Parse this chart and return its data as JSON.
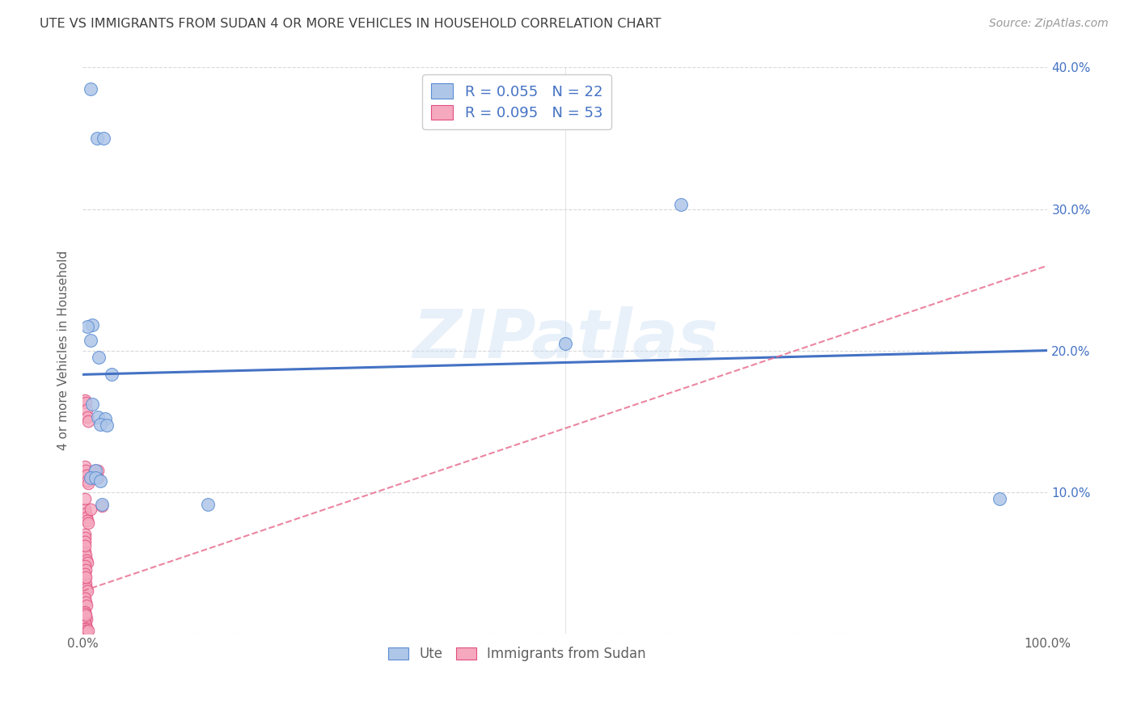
{
  "title": "UTE VS IMMIGRANTS FROM SUDAN 4 OR MORE VEHICLES IN HOUSEHOLD CORRELATION CHART",
  "source": "Source: ZipAtlas.com",
  "ylabel": "4 or more Vehicles in Household",
  "watermark": "ZIPatlas",
  "blue_R": 0.055,
  "blue_N": 22,
  "pink_R": 0.095,
  "pink_N": 53,
  "xlim": [
    0,
    1.0
  ],
  "ylim": [
    0,
    0.4
  ],
  "blue_scatter_x": [
    0.008,
    0.015,
    0.022,
    0.01,
    0.008,
    0.017,
    0.03,
    0.01,
    0.016,
    0.023,
    0.018,
    0.025,
    0.013,
    0.008,
    0.013,
    0.018,
    0.02,
    0.5,
    0.62,
    0.95,
    0.13,
    0.005
  ],
  "blue_scatter_y": [
    0.385,
    0.35,
    0.35,
    0.218,
    0.207,
    0.195,
    0.183,
    0.162,
    0.153,
    0.152,
    0.148,
    0.147,
    0.115,
    0.11,
    0.11,
    0.108,
    0.091,
    0.205,
    0.303,
    0.095,
    0.091,
    0.217
  ],
  "blue_line_x": [
    0.0,
    1.0
  ],
  "blue_line_y": [
    0.183,
    0.2
  ],
  "pink_scatter_x": [
    0.002,
    0.003,
    0.004,
    0.005,
    0.006,
    0.002,
    0.003,
    0.004,
    0.005,
    0.006,
    0.002,
    0.003,
    0.004,
    0.005,
    0.006,
    0.002,
    0.003,
    0.004,
    0.005,
    0.002,
    0.003,
    0.004,
    0.005,
    0.002,
    0.003,
    0.004,
    0.002,
    0.003,
    0.004,
    0.002,
    0.003,
    0.004,
    0.002,
    0.003,
    0.004,
    0.002,
    0.003,
    0.002,
    0.003,
    0.002,
    0.003,
    0.002,
    0.002,
    0.002,
    0.002,
    0.002,
    0.016,
    0.012,
    0.01,
    0.016,
    0.008,
    0.02,
    0.006
  ],
  "pink_scatter_y": [
    0.165,
    0.163,
    0.158,
    0.153,
    0.15,
    0.118,
    0.115,
    0.112,
    0.108,
    0.106,
    0.088,
    0.085,
    0.082,
    0.08,
    0.078,
    0.058,
    0.055,
    0.052,
    0.05,
    0.038,
    0.035,
    0.032,
    0.03,
    0.025,
    0.022,
    0.02,
    0.015,
    0.012,
    0.01,
    0.008,
    0.006,
    0.004,
    0.003,
    0.002,
    0.001,
    0.014,
    0.013,
    0.048,
    0.045,
    0.042,
    0.04,
    0.07,
    0.068,
    0.065,
    0.062,
    0.095,
    0.115,
    0.115,
    0.11,
    0.11,
    0.088,
    0.09,
    0.002
  ],
  "pink_line_x": [
    0.0,
    1.0
  ],
  "pink_line_y": [
    0.03,
    0.26
  ],
  "blue_color": "#aec6e8",
  "blue_edge_color": "#5b8dd4",
  "pink_color": "#f5a8be",
  "pink_edge_color": "#e05080",
  "blue_line_color": "#4472c4",
  "pink_line_color": "#e87090",
  "background_color": "#ffffff",
  "grid_color": "#d8d8d8",
  "title_color": "#404040",
  "label_color": "#606060",
  "right_tick_color": "#4472c4"
}
